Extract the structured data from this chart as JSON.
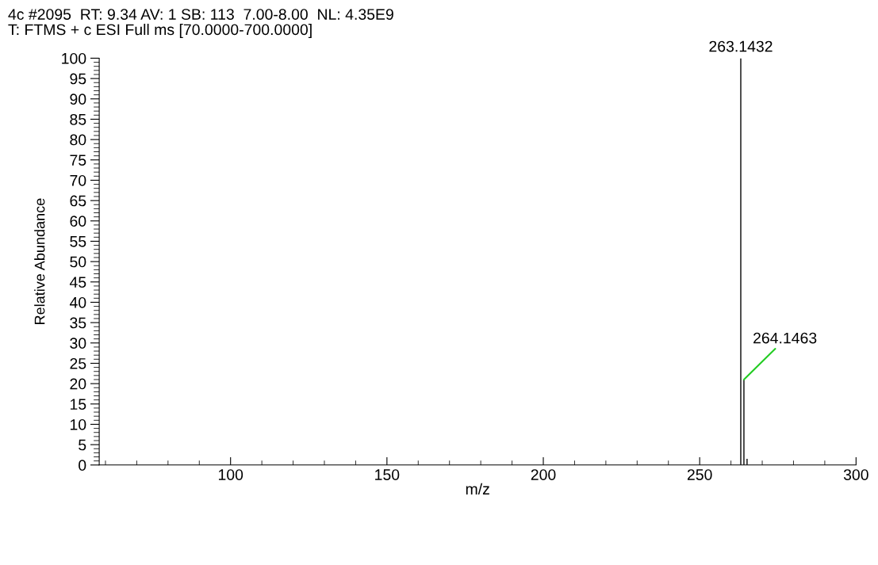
{
  "chart_data": {
    "type": "bar",
    "title": "4c #2095  RT: 9.34 AV: 1 SB: 113  7.00-8.00  NL: 4.35E9",
    "subtitle": "T: FTMS + c ESI Full ms [70.0000-700.0000]",
    "xlabel": "m/z",
    "ylabel": "Relative Abundance",
    "x": [
      263.1432,
      264.1463,
      265.15
    ],
    "values": [
      100,
      21,
      1.5
    ],
    "color": "#000000",
    "annotations": [
      {
        "text": "263.1432",
        "x": 263.1432,
        "y": 100
      },
      {
        "text": "264.1463",
        "x": 264.1463,
        "y": 21
      }
    ],
    "xlim": [
      58,
      300
    ],
    "xticks": [
      100,
      150,
      200,
      250,
      300
    ],
    "ylim": [
      0,
      100
    ],
    "yticks": [
      0,
      5,
      10,
      15,
      20,
      25,
      30,
      35,
      40,
      45,
      50,
      55,
      60,
      65,
      70,
      75,
      80,
      85,
      90,
      95,
      100
    ],
    "grid": false,
    "legend": false
  }
}
